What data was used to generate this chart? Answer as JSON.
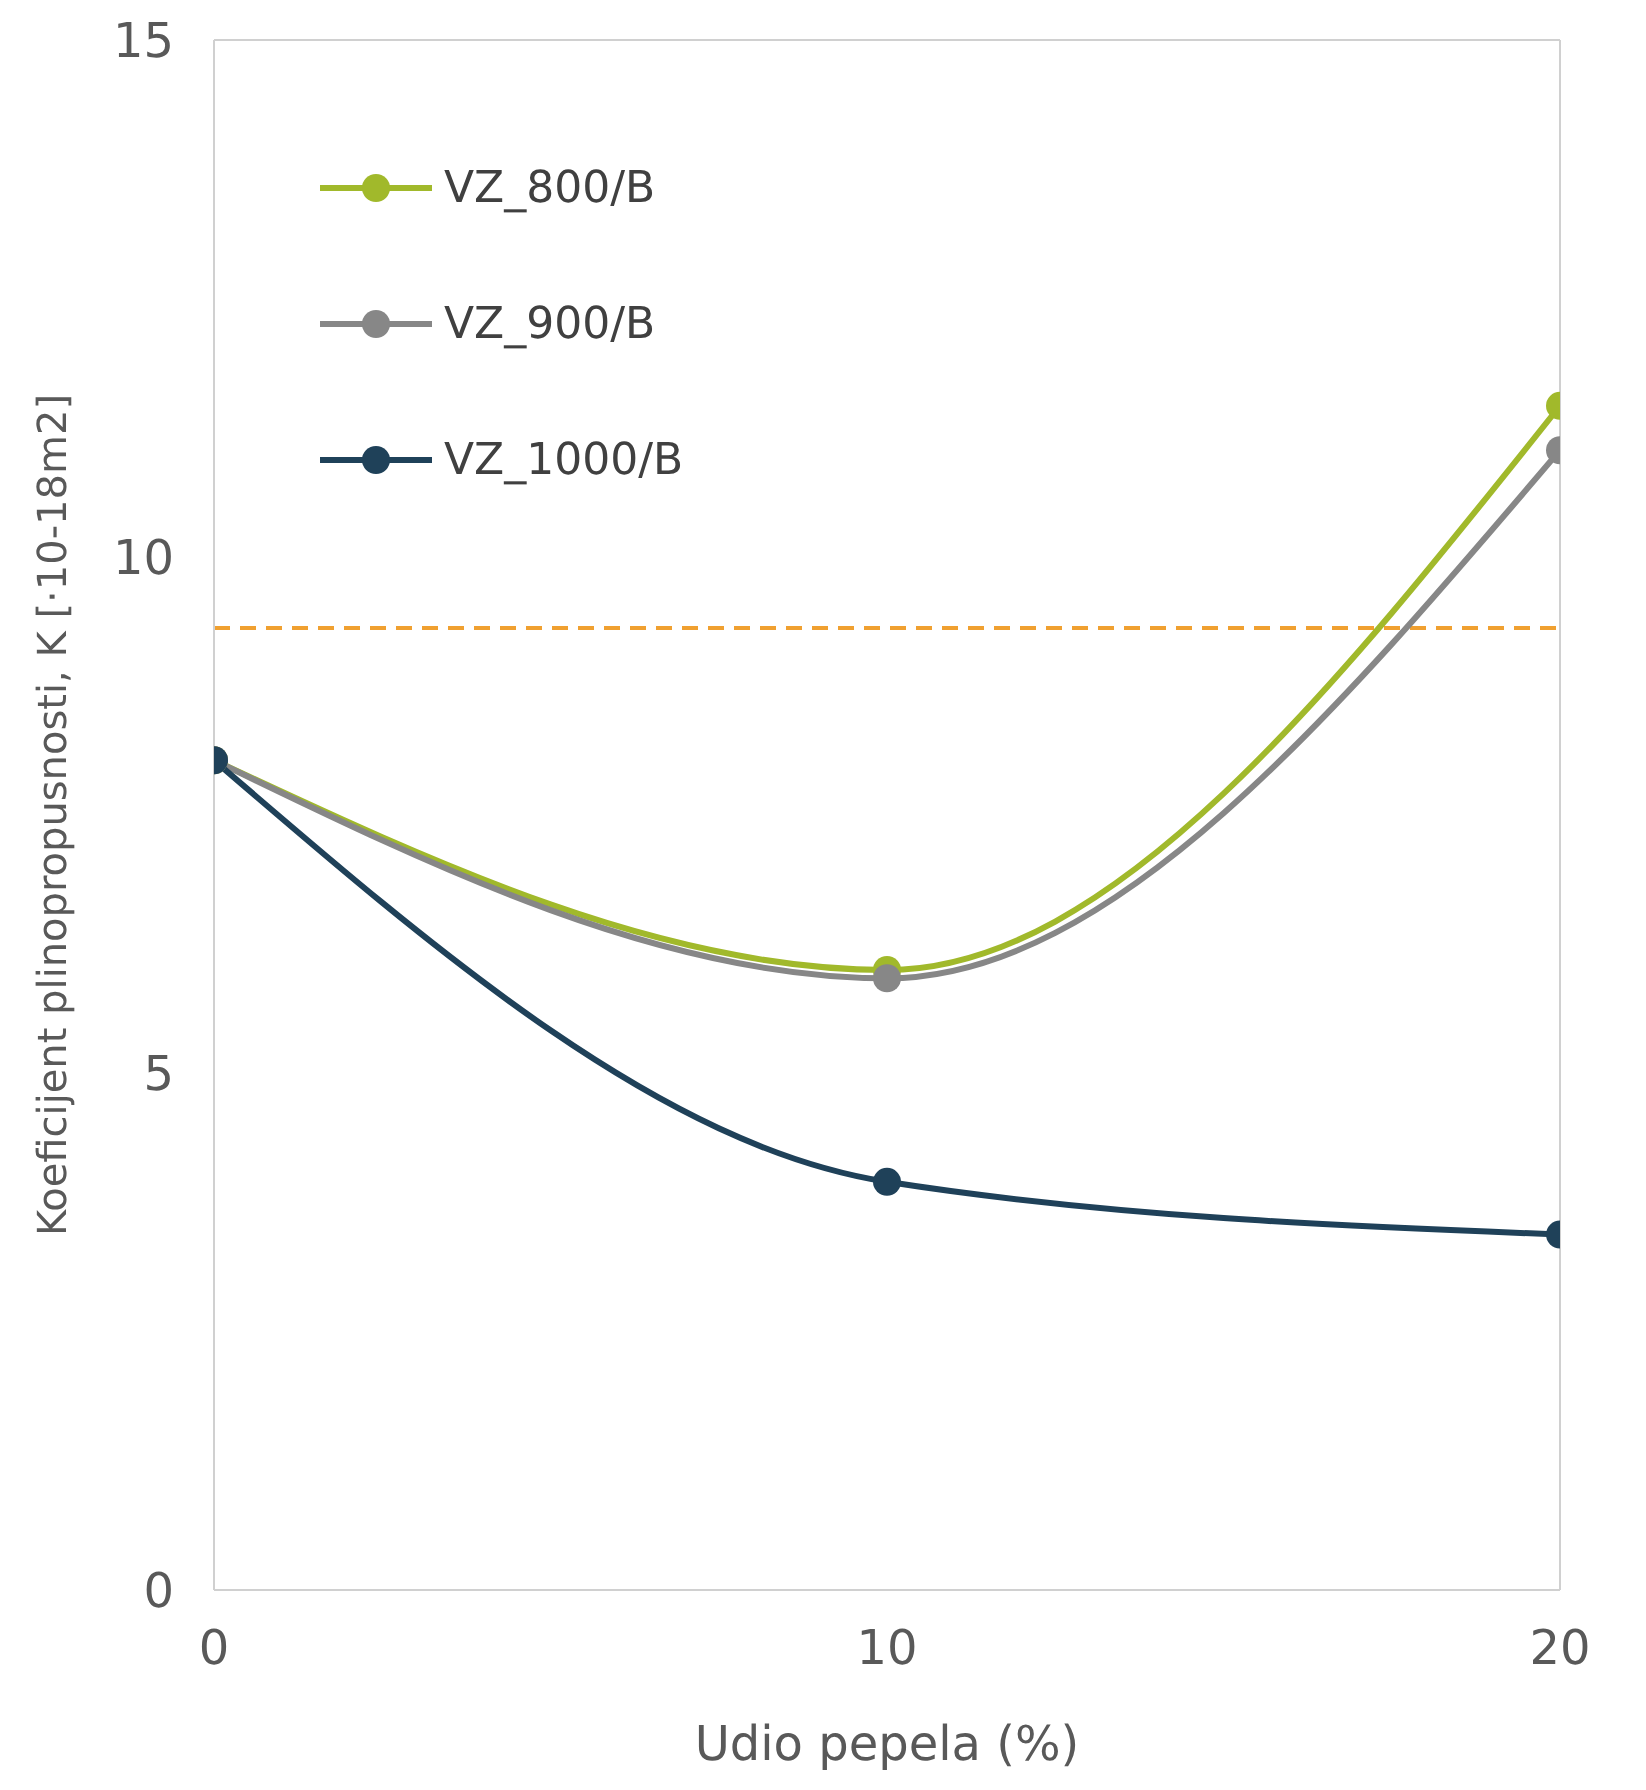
{
  "chart_data": {
    "type": "line",
    "xlabel": "Udio pepela (%)",
    "ylabel": "Koeficijent plinopropusnosti, K [·10-18m2]",
    "x": [
      0,
      10,
      20
    ],
    "xlim": [
      0,
      20
    ],
    "xticks": [
      0,
      10,
      20
    ],
    "ylim": [
      0,
      15
    ],
    "yticks": [
      0,
      5,
      10,
      15
    ],
    "series": [
      {
        "name": "VZ_800/B",
        "color": "#a1b92b",
        "values": [
          8.03,
          6.0,
          11.46
        ]
      },
      {
        "name": "VZ_900/B",
        "color": "#878787",
        "values": [
          8.03,
          5.92,
          11.03
        ]
      },
      {
        "name": "VZ_1000/B",
        "color": "#1f4159",
        "values": [
          8.03,
          3.95,
          3.44
        ]
      }
    ],
    "ref_lines": [
      {
        "axis": "y",
        "value": 9.31,
        "color": "#f0a030",
        "line_style": "dashed"
      }
    ],
    "marker": "circle",
    "line_style": "solid",
    "grid": false,
    "legend": "top left"
  }
}
